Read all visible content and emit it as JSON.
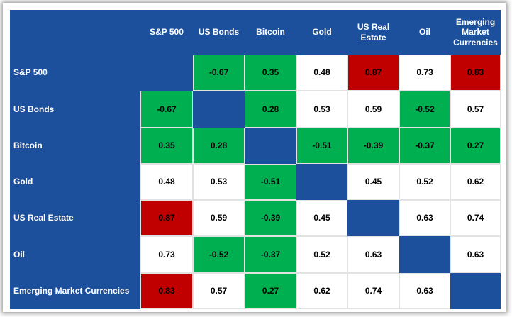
{
  "table": {
    "columns": [
      "S&P 500",
      "US Bonds",
      "Bitcoin",
      "Gold",
      "US Real Estate",
      "Oil",
      "Emerging Market Currencies"
    ],
    "rows": [
      {
        "label": "S&P 500",
        "values": [
          null,
          -0.67,
          0.35,
          0.48,
          0.87,
          0.73,
          0.83
        ],
        "colors": [
          "#1c4f9c",
          "#00b050",
          "#00b050",
          "#ffffff",
          "#c00000",
          "#ffffff",
          "#c00000"
        ]
      },
      {
        "label": "US Bonds",
        "values": [
          -0.67,
          null,
          0.28,
          0.53,
          0.59,
          -0.52,
          0.57
        ],
        "colors": [
          "#00b050",
          "#1c4f9c",
          "#00b050",
          "#ffffff",
          "#ffffff",
          "#00b050",
          "#ffffff"
        ]
      },
      {
        "label": "Bitcoin",
        "values": [
          0.35,
          0.28,
          null,
          -0.51,
          -0.39,
          -0.37,
          0.27
        ],
        "colors": [
          "#00b050",
          "#00b050",
          "#1c4f9c",
          "#00b050",
          "#00b050",
          "#00b050",
          "#00b050"
        ]
      },
      {
        "label": "Gold",
        "values": [
          0.48,
          0.53,
          -0.51,
          null,
          0.45,
          0.52,
          0.62
        ],
        "colors": [
          "#ffffff",
          "#ffffff",
          "#00b050",
          "#1c4f9c",
          "#ffffff",
          "#ffffff",
          "#ffffff"
        ]
      },
      {
        "label": "US Real Estate",
        "values": [
          0.87,
          0.59,
          -0.39,
          0.45,
          null,
          0.63,
          0.74
        ],
        "colors": [
          "#c00000",
          "#ffffff",
          "#00b050",
          "#ffffff",
          "#1c4f9c",
          "#ffffff",
          "#ffffff"
        ]
      },
      {
        "label": "Oil",
        "values": [
          0.73,
          -0.52,
          -0.37,
          0.52,
          0.63,
          null,
          0.63
        ],
        "colors": [
          "#ffffff",
          "#00b050",
          "#00b050",
          "#ffffff",
          "#ffffff",
          "#1c4f9c",
          "#ffffff"
        ]
      },
      {
        "label": "Emerging Market Currencies",
        "values": [
          0.83,
          0.57,
          0.27,
          0.62,
          0.74,
          0.63,
          null
        ],
        "colors": [
          "#c00000",
          "#ffffff",
          "#00b050",
          "#ffffff",
          "#ffffff",
          "#ffffff",
          "#1c4f9c"
        ]
      }
    ],
    "header_color": "#1c4f9c"
  }
}
